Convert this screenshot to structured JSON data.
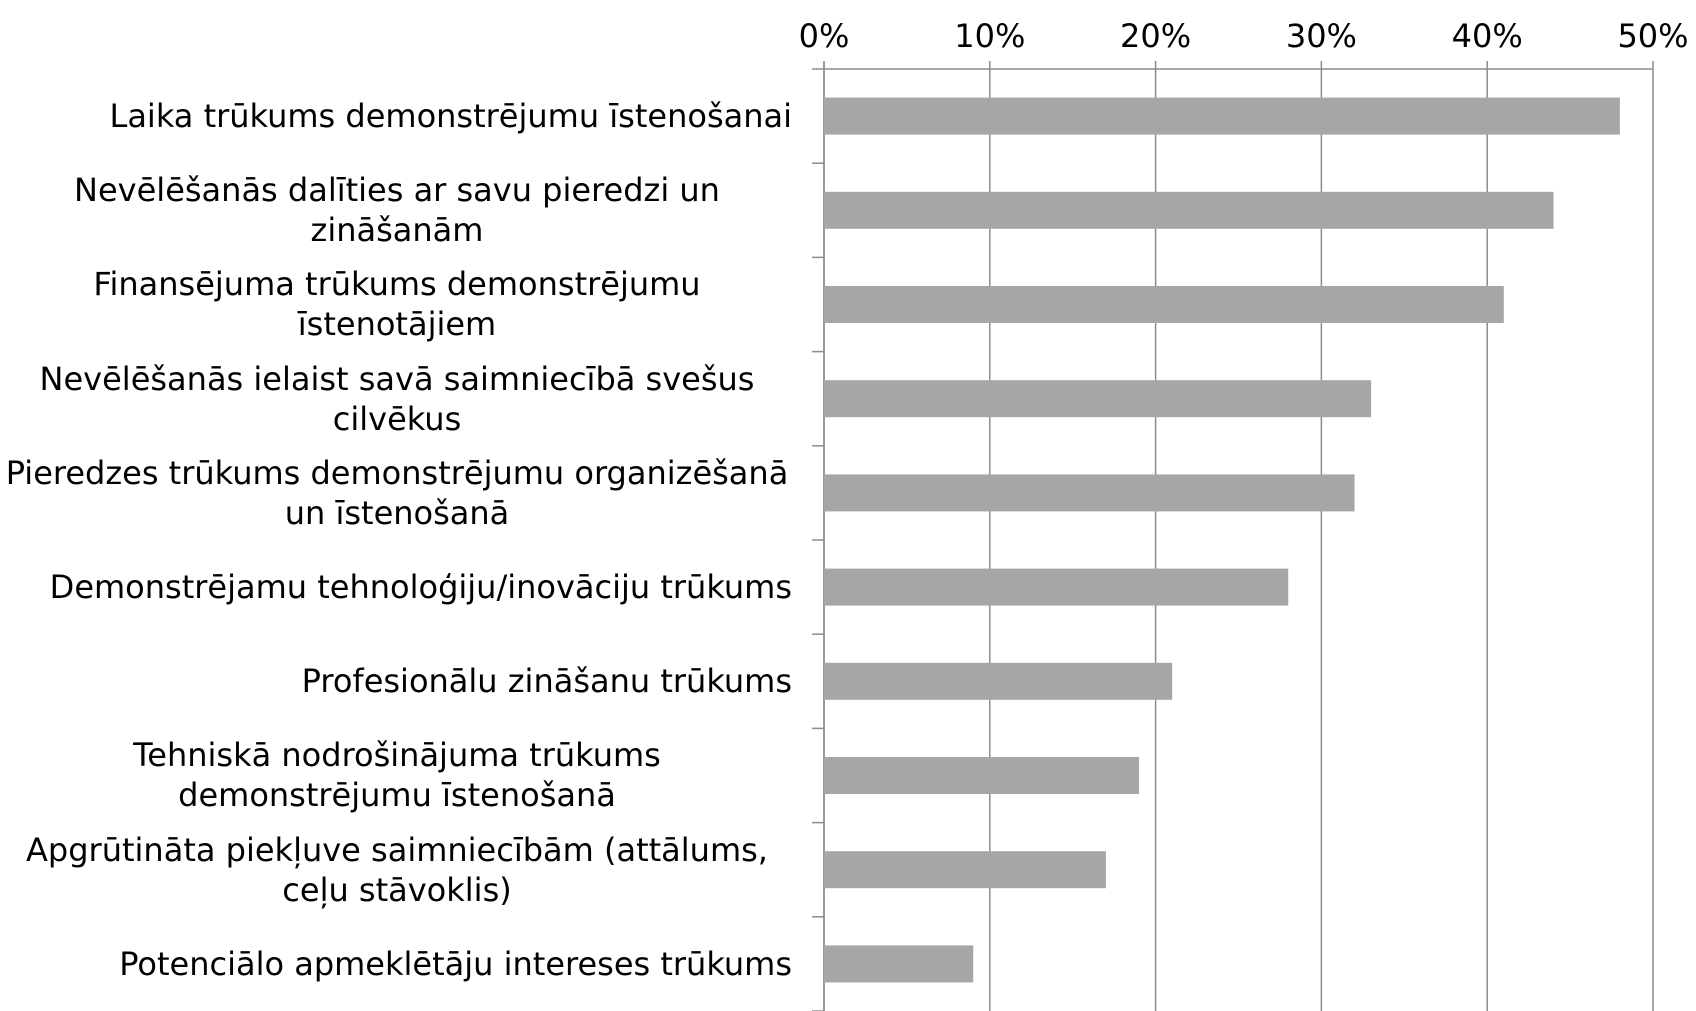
{
  "chart_data": {
    "type": "barh",
    "categories": [
      "Laika trūkums demonstrējumu īstenošanai",
      "Nevēlēšanās dalīties ar savu pieredzi un zināšanām",
      "Finansējuma trūkums demonstrējumu īstenotājiem",
      "Nevēlēšanās ielaist savā saimniecībā svešus cilvēkus",
      "Pieredzes trūkums demonstrējumu organizēšanā un īstenošanā",
      "Demonstrējamu tehnoloģiju/inovāciju trūkums",
      "Profesionālu zināšanu trūkums",
      "Tehniskā nodrošinājuma trūkums demonstrējumu īstenošanā",
      "Apgrūtināta piekļuve saimniecībām (attālums, ceļu stāvoklis)",
      "Potenciālo apmeklētāju intereses trūkums"
    ],
    "values": [
      48,
      44,
      41,
      33,
      32,
      28,
      21,
      19,
      17,
      9
    ],
    "color": "#a6a6a6",
    "xlim": [
      0,
      50
    ],
    "xticks": [
      {
        "value": 0,
        "label": "0%"
      },
      {
        "value": 10,
        "label": "10%"
      },
      {
        "value": 20,
        "label": "20%"
      },
      {
        "value": 30,
        "label": "30%"
      },
      {
        "value": 40,
        "label": "40%"
      },
      {
        "value": 50,
        "label": "50%"
      }
    ],
    "grid": true
  }
}
